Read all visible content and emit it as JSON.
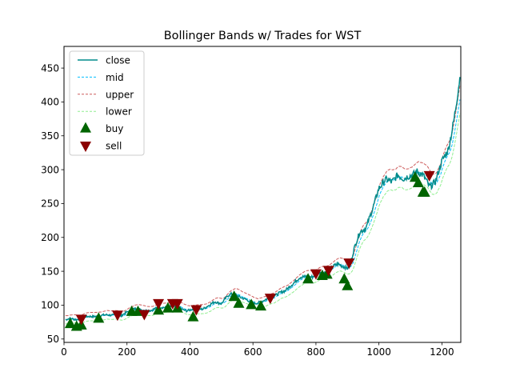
{
  "chart_data": {
    "type": "line",
    "title": "Bollinger Bands w/ Trades for WST",
    "xlabel": "",
    "ylabel": "",
    "xlim": [
      0,
      1260
    ],
    "ylim": [
      45,
      482
    ],
    "xticks": [
      0,
      200,
      400,
      600,
      800,
      1000,
      1200
    ],
    "yticks": [
      50,
      100,
      150,
      200,
      250,
      300,
      350,
      400,
      450
    ],
    "grid": false,
    "legend_position": "top-left",
    "anchors": {
      "x": [
        5,
        20,
        40,
        60,
        80,
        100,
        130,
        160,
        180,
        200,
        220,
        250,
        280,
        300,
        330,
        360,
        390,
        420,
        440,
        460,
        480,
        500,
        520,
        540,
        560,
        580,
        600,
        630,
        650,
        670,
        700,
        720,
        750,
        770,
        790,
        810,
        830,
        850,
        870,
        890,
        900,
        910,
        920,
        940,
        960,
        980,
        1000,
        1010,
        1020,
        1040,
        1060,
        1080,
        1100,
        1120,
        1140,
        1160,
        1180,
        1200,
        1220,
        1240,
        1258
      ],
      "close": [
        78,
        80,
        79,
        82,
        83,
        84,
        85,
        86,
        83,
        90,
        95,
        92,
        93,
        96,
        98,
        97,
        92,
        94,
        95,
        99,
        105,
        103,
        113,
        118,
        112,
        107,
        103,
        105,
        110,
        115,
        120,
        130,
        140,
        143,
        142,
        148,
        150,
        155,
        160,
        158,
        155,
        160,
        180,
        210,
        215,
        240,
        275,
        280,
        285,
        280,
        295,
        285,
        290,
        300,
        290,
        275,
        285,
        310,
        330,
        380,
        435
      ]
    },
    "band_width": [
      6,
      22
    ],
    "series": [
      {
        "name": "close",
        "color": "#008b8b",
        "style": "solid"
      },
      {
        "name": "mid",
        "color": "#00bfff",
        "style": "dashed"
      },
      {
        "name": "upper",
        "color": "#cd5c5c",
        "style": "dashed"
      },
      {
        "name": "lower",
        "color": "#90ee90",
        "style": "dashed"
      }
    ],
    "trades": {
      "buy": [
        {
          "x": 20,
          "y": 72
        },
        {
          "x": 40,
          "y": 68
        },
        {
          "x": 55,
          "y": 70
        },
        {
          "x": 110,
          "y": 80
        },
        {
          "x": 215,
          "y": 90
        },
        {
          "x": 235,
          "y": 90
        },
        {
          "x": 300,
          "y": 92
        },
        {
          "x": 330,
          "y": 95
        },
        {
          "x": 360,
          "y": 95
        },
        {
          "x": 410,
          "y": 82
        },
        {
          "x": 540,
          "y": 112
        },
        {
          "x": 555,
          "y": 102
        },
        {
          "x": 595,
          "y": 100
        },
        {
          "x": 625,
          "y": 98
        },
        {
          "x": 775,
          "y": 138
        },
        {
          "x": 820,
          "y": 143
        },
        {
          "x": 835,
          "y": 145
        },
        {
          "x": 890,
          "y": 138
        },
        {
          "x": 900,
          "y": 128
        },
        {
          "x": 1115,
          "y": 288
        },
        {
          "x": 1125,
          "y": 280
        },
        {
          "x": 1140,
          "y": 266
        },
        {
          "x": 1145,
          "y": 266
        }
      ],
      "sell": [
        {
          "x": 55,
          "y": 80
        },
        {
          "x": 170,
          "y": 86
        },
        {
          "x": 255,
          "y": 87
        },
        {
          "x": 300,
          "y": 103
        },
        {
          "x": 345,
          "y": 103
        },
        {
          "x": 360,
          "y": 103
        },
        {
          "x": 420,
          "y": 94
        },
        {
          "x": 655,
          "y": 111
        },
        {
          "x": 800,
          "y": 147
        },
        {
          "x": 840,
          "y": 152
        },
        {
          "x": 905,
          "y": 163
        },
        {
          "x": 1160,
          "y": 292
        }
      ]
    },
    "legend": [
      {
        "label": "close",
        "kind": "line",
        "color": "#008b8b",
        "dash": ""
      },
      {
        "label": "mid",
        "kind": "line",
        "color": "#00bfff",
        "dash": "3,2"
      },
      {
        "label": "upper",
        "kind": "line",
        "color": "#cd5c5c",
        "dash": "3,2"
      },
      {
        "label": "lower",
        "kind": "line",
        "color": "#90ee90",
        "dash": "3,2"
      },
      {
        "label": "buy",
        "kind": "up-triangle",
        "color": "#006400",
        "dash": ""
      },
      {
        "label": "sell",
        "kind": "down-triangle",
        "color": "#8b0000",
        "dash": ""
      }
    ]
  }
}
